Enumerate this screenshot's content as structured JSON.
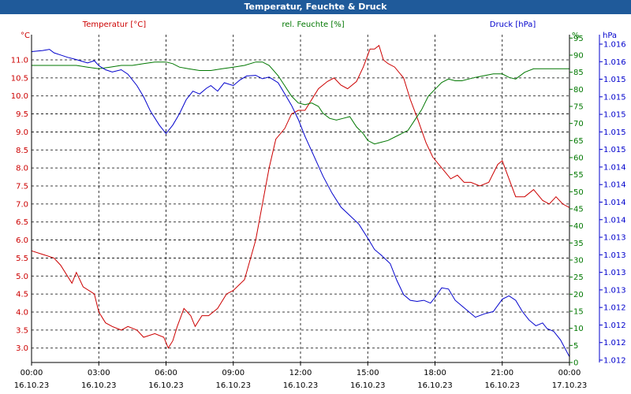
{
  "chart_data": {
    "type": "line",
    "title": "Temperatur, Feuchte & Druck",
    "x_ticks": [
      {
        "time": "00:00",
        "date": "16.10.23"
      },
      {
        "time": "03:00",
        "date": "16.10.23"
      },
      {
        "time": "06:00",
        "date": "16.10.23"
      },
      {
        "time": "09:00",
        "date": "16.10.23"
      },
      {
        "time": "12:00",
        "date": "16.10.23"
      },
      {
        "time": "15:00",
        "date": "16.10.23"
      },
      {
        "time": "18:00",
        "date": "16.10.23"
      },
      {
        "time": "21:00",
        "date": "16.10.23"
      },
      {
        "time": "00:00",
        "date": "17.10.23"
      }
    ],
    "x_range_hours": [
      0,
      24
    ],
    "axes": {
      "temperature": {
        "unit": "°C",
        "range": [
          2.6,
          11.7
        ],
        "ticks": [
          "3.0",
          "3.5",
          "4.0",
          "4.5",
          "5.0",
          "5.5",
          "6.0",
          "6.5",
          "7.0",
          "7.5",
          "8.0",
          "8.5",
          "9.0",
          "9.5",
          "10.0",
          "10.5",
          "11.0"
        ],
        "color": "#cc0000"
      },
      "humidity": {
        "unit": "%",
        "range": [
          0,
          96
        ],
        "ticks": [
          "0",
          "5",
          "10",
          "15",
          "20",
          "25",
          "30",
          "35",
          "40",
          "45",
          "50",
          "55",
          "60",
          "65",
          "70",
          "75",
          "80",
          "85",
          "90",
          "95"
        ],
        "color": "#007700"
      },
      "pressure": {
        "unit": "hPa",
        "ticks": [
          "1.012",
          "1.012",
          "1.012",
          "1.012",
          "1.013",
          "1.013",
          "1.013",
          "1.013",
          "1.014",
          "1.014",
          "1.014",
          "1.014",
          "1.015",
          "1.015",
          "1.015",
          "1.015",
          "1.015",
          "1.016",
          "1.016"
        ],
        "color": "#0000cc"
      }
    },
    "series": [
      {
        "name": "Temperatur [°C]",
        "axis": "temperature",
        "color": "#cc0000",
        "hours": [
          0,
          0.5,
          1.0,
          1.3,
          1.8,
          2.0,
          2.3,
          2.8,
          3.0,
          3.3,
          3.6,
          4.0,
          4.3,
          4.7,
          5.0,
          5.5,
          5.9,
          6.1,
          6.3,
          6.5,
          6.8,
          7.1,
          7.3,
          7.6,
          7.9,
          8.3,
          8.7,
          9.0,
          9.5,
          10.0,
          10.3,
          10.6,
          10.9,
          11.3,
          11.6,
          11.9,
          12.2,
          12.5,
          12.8,
          13.2,
          13.5,
          13.8,
          14.1,
          14.5,
          14.8,
          15.1,
          15.3,
          15.5,
          15.7,
          15.9,
          16.2,
          16.6,
          16.9,
          17.2,
          17.6,
          17.9,
          18.3,
          18.7,
          19.0,
          19.3,
          19.6,
          20.0,
          20.4,
          20.8,
          21.0,
          21.3,
          21.6,
          22.0,
          22.4,
          22.8,
          23.1,
          23.4,
          23.7,
          24.0
        ],
        "values": [
          5.7,
          5.6,
          5.5,
          5.3,
          4.8,
          5.1,
          4.7,
          4.5,
          4.0,
          3.7,
          3.6,
          3.5,
          3.6,
          3.5,
          3.3,
          3.4,
          3.3,
          3.0,
          3.2,
          3.6,
          4.1,
          3.9,
          3.6,
          3.9,
          3.9,
          4.1,
          4.5,
          4.6,
          4.9,
          6.0,
          7.0,
          8.0,
          8.8,
          9.1,
          9.5,
          9.6,
          9.6,
          9.9,
          10.2,
          10.4,
          10.5,
          10.3,
          10.2,
          10.4,
          10.8,
          11.3,
          11.3,
          11.4,
          11.0,
          10.9,
          10.8,
          10.5,
          9.9,
          9.4,
          8.7,
          8.3,
          8.0,
          7.7,
          7.8,
          7.6,
          7.6,
          7.5,
          7.6,
          8.1,
          8.2,
          7.7,
          7.2,
          7.2,
          7.4,
          7.1,
          7.0,
          7.2,
          7.0,
          6.9
        ]
      },
      {
        "name": "rel. Feuchte [%]",
        "axis": "humidity",
        "color": "#007700",
        "hours": [
          0,
          0.5,
          1.0,
          1.5,
          2.0,
          2.5,
          3.0,
          3.5,
          4.0,
          4.5,
          5.0,
          5.5,
          6.0,
          6.3,
          6.6,
          7.0,
          7.5,
          8.0,
          8.5,
          9.0,
          9.5,
          10.0,
          10.3,
          10.6,
          11.0,
          11.3,
          11.6,
          11.9,
          12.2,
          12.5,
          12.8,
          13.0,
          13.3,
          13.6,
          13.9,
          14.2,
          14.5,
          14.8,
          15.0,
          15.3,
          15.6,
          15.9,
          16.2,
          16.5,
          16.8,
          17.1,
          17.4,
          17.7,
          18.0,
          18.3,
          18.6,
          18.9,
          19.2,
          19.5,
          19.8,
          20.2,
          20.6,
          21.0,
          21.3,
          21.6,
          22.0,
          22.4,
          22.8,
          23.2,
          23.6,
          24.0
        ],
        "values": [
          87,
          87,
          87,
          87,
          87,
          86.5,
          86,
          86.5,
          87,
          87,
          87.5,
          88,
          88,
          87.5,
          86.5,
          86,
          85.5,
          85.5,
          86,
          86.5,
          87,
          88,
          88,
          87,
          84,
          81,
          78,
          76,
          75.5,
          76,
          75,
          73,
          71.5,
          71,
          71.5,
          72,
          69,
          67,
          65,
          64,
          64.5,
          65,
          66,
          67,
          68,
          71,
          74,
          78,
          80,
          82,
          83,
          82.5,
          82.5,
          83,
          83.5,
          84,
          84.5,
          84.5,
          83.5,
          83,
          85,
          86,
          86,
          86,
          86,
          86
        ]
      },
      {
        "name": "Druck [hPa]",
        "axis": "pressure",
        "color": "#0000cc",
        "hours": [
          0,
          0.5,
          0.8,
          1.0,
          1.3,
          1.6,
          2.0,
          2.5,
          2.8,
          3.0,
          3.3,
          3.6,
          4.0,
          4.3,
          4.7,
          5.0,
          5.3,
          5.7,
          6.0,
          6.3,
          6.6,
          6.9,
          7.2,
          7.5,
          7.8,
          8.0,
          8.3,
          8.6,
          9.0,
          9.3,
          9.6,
          10.0,
          10.3,
          10.6,
          11.0,
          11.3,
          11.6,
          11.9,
          12.2,
          12.6,
          13.0,
          13.4,
          13.8,
          14.2,
          14.6,
          15.0,
          15.3,
          15.6,
          16.0,
          16.3,
          16.6,
          16.9,
          17.2,
          17.5,
          17.8,
          18.0,
          18.3,
          18.6,
          18.9,
          19.2,
          19.5,
          19.8,
          20.2,
          20.6,
          21.0,
          21.3,
          21.6,
          21.9,
          22.2,
          22.5,
          22.8,
          23.0,
          23.3,
          23.6,
          24.0
        ],
        "values": [
          1.016,
          1.01602,
          1.01604,
          1.01598,
          1.01594,
          1.0159,
          1.01586,
          1.0158,
          1.01584,
          1.01575,
          1.01568,
          1.01564,
          1.01568,
          1.0156,
          1.0154,
          1.0152,
          1.01495,
          1.0147,
          1.01455,
          1.0147,
          1.0149,
          1.01515,
          1.0153,
          1.01525,
          1.01535,
          1.0154,
          1.0153,
          1.01545,
          1.0154,
          1.0155,
          1.01557,
          1.01558,
          1.01552,
          1.01555,
          1.01545,
          1.01525,
          1.01505,
          1.0148,
          1.0145,
          1.01415,
          1.0138,
          1.0135,
          1.01325,
          1.0131,
          1.01295,
          1.0127,
          1.0125,
          1.0124,
          1.01225,
          1.01195,
          1.0117,
          1.0116,
          1.01158,
          1.0116,
          1.01155,
          1.01165,
          1.01182,
          1.0118,
          1.0116,
          1.0115,
          1.0114,
          1.0113,
          1.01136,
          1.0114,
          1.01162,
          1.01168,
          1.0116,
          1.0114,
          1.01125,
          1.01115,
          1.0112,
          1.0111,
          1.01105,
          1.0109,
          1.0106
        ]
      }
    ],
    "pressure_value_range": [
      1.0105,
      1.0163
    ]
  }
}
